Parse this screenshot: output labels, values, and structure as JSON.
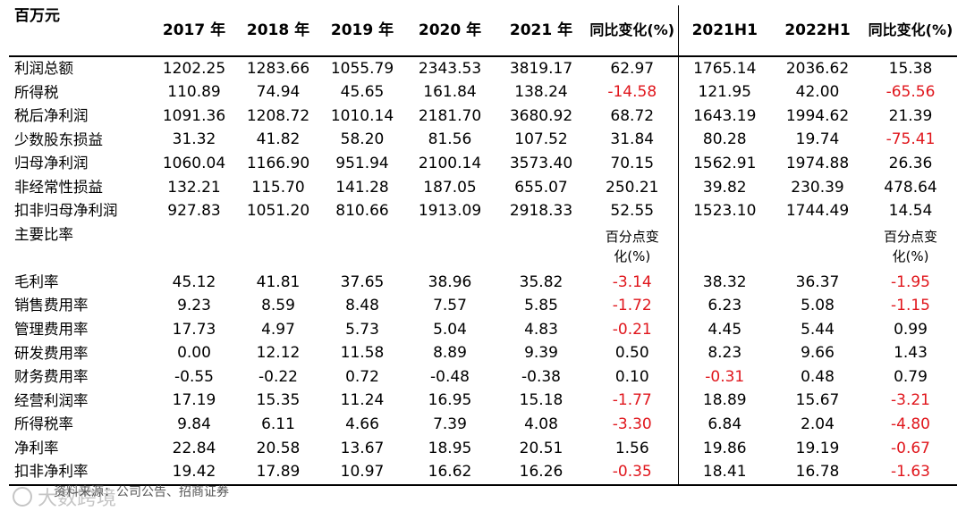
{
  "header": {
    "corner": "百万元",
    "columns": [
      "2017 年",
      "2018 年",
      "2019 年",
      "2020 年",
      "2021 年",
      "同比变化(%)",
      "2021H1",
      "2022H1",
      "同比变化(%)"
    ]
  },
  "rows": [
    {
      "label": "利润总额",
      "values": [
        "1202.25",
        "1283.66",
        "1055.79",
        "2343.53",
        "3819.17",
        "62.97",
        "1765.14",
        "2036.62",
        "15.38"
      ]
    },
    {
      "label": "所得税",
      "values": [
        "110.89",
        "74.94",
        "45.65",
        "161.84",
        "138.24",
        "-14.58",
        "121.95",
        "42.00",
        "-65.56"
      ]
    },
    {
      "label": "税后净利润",
      "values": [
        "1091.36",
        "1208.72",
        "1010.14",
        "2181.70",
        "3680.92",
        "68.72",
        "1643.19",
        "1994.62",
        "21.39"
      ]
    },
    {
      "label": "少数股东损益",
      "values": [
        "31.32",
        "41.82",
        "58.20",
        "81.56",
        "107.52",
        "31.84",
        "80.28",
        "19.74",
        "-75.41"
      ]
    },
    {
      "label": "归母净利润",
      "values": [
        "1060.04",
        "1166.90",
        "951.94",
        "2100.14",
        "3573.40",
        "70.15",
        "1562.91",
        "1974.88",
        "26.36"
      ]
    },
    {
      "label": "非经常性损益",
      "values": [
        "132.21",
        "115.70",
        "141.28",
        "187.05",
        "655.07",
        "250.21",
        "39.82",
        "230.39",
        "478.64"
      ]
    },
    {
      "label": "扣非归母净利润",
      "values": [
        "927.83",
        "1051.20",
        "810.66",
        "1913.09",
        "2918.33",
        "52.55",
        "1523.10",
        "1744.49",
        "14.54"
      ]
    }
  ],
  "ratio_section": {
    "label": "主要比率",
    "note_line1": "百分点变",
    "note_line2": "化(%)"
  },
  "ratios": [
    {
      "label": "毛利率",
      "values": [
        "45.12",
        "41.81",
        "37.65",
        "38.96",
        "35.82",
        "-3.14",
        "38.32",
        "36.37",
        "-1.95"
      ]
    },
    {
      "label": "销售费用率",
      "values": [
        "9.23",
        "8.59",
        "8.48",
        "7.57",
        "5.85",
        "-1.72",
        "6.23",
        "5.08",
        "-1.15"
      ]
    },
    {
      "label": "管理费用率",
      "values": [
        "17.73",
        "4.97",
        "5.73",
        "5.04",
        "4.83",
        "-0.21",
        "4.45",
        "5.44",
        "0.99"
      ]
    },
    {
      "label": "研发费用率",
      "values": [
        "0.00",
        "12.12",
        "11.58",
        "8.89",
        "9.39",
        "0.50",
        "8.23",
        "9.66",
        "1.43"
      ]
    },
    {
      "label": "财务费用率",
      "values": [
        "-0.55",
        "-0.22",
        "0.72",
        "-0.48",
        "-0.38",
        "0.10",
        "-0.31",
        "0.48",
        "0.79"
      ]
    },
    {
      "label": "经营利润率",
      "values": [
        "17.19",
        "15.35",
        "11.24",
        "16.95",
        "15.18",
        "-1.77",
        "18.89",
        "15.67",
        "-3.21"
      ]
    },
    {
      "label": "所得税率",
      "values": [
        "9.84",
        "6.11",
        "4.66",
        "7.39",
        "4.08",
        "-3.30",
        "6.84",
        "2.04",
        "-4.80"
      ]
    },
    {
      "label": "净利率",
      "values": [
        "22.84",
        "20.58",
        "13.67",
        "18.95",
        "20.51",
        "1.56",
        "19.86",
        "19.19",
        "-0.67"
      ]
    },
    {
      "label": "扣非净利率",
      "values": [
        "19.42",
        "17.89",
        "10.97",
        "16.62",
        "16.26",
        "-0.35",
        "18.41",
        "16.78",
        "-1.63"
      ]
    }
  ],
  "footer": {
    "source": "资料来源：公司公告、招商证券",
    "watermark": "大数跨境"
  },
  "colors": {
    "negative_highlight": "#e0161c",
    "text": "#000000"
  }
}
